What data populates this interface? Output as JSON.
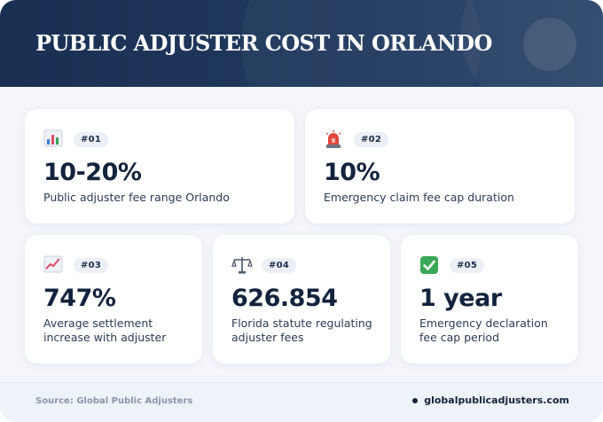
{
  "header": {
    "title": "PUBLIC ADJUSTER COST IN ORLANDO"
  },
  "cards": [
    {
      "badge": "#01",
      "value": "10-20%",
      "label": "Public adjuster fee range Orlando",
      "icon": "bar-chart-icon"
    },
    {
      "badge": "#02",
      "value": "10%",
      "label": "Emergency claim fee cap duration",
      "icon": "siren-icon"
    },
    {
      "badge": "#03",
      "value": "747%",
      "label": "Average settlement increase with adjuster",
      "icon": "trending-up-icon"
    },
    {
      "badge": "#04",
      "value": "626.854",
      "label": "Florida statute regulating adjuster fees",
      "icon": "scales-icon"
    },
    {
      "badge": "#05",
      "value": "1 year",
      "label": "Emergency declaration fee cap period",
      "icon": "check-mark-icon"
    }
  ],
  "footer": {
    "source": "Source: Global Public Adjusters",
    "site": "globalpublicadjusters.com"
  },
  "colors": {
    "header_bg": "#1f3556",
    "text_dark": "#14233d",
    "badge_bg": "#eceff5",
    "footer_bg": "#eef2f9",
    "check_green": "#3aa856",
    "siren_red": "#e0483e"
  }
}
